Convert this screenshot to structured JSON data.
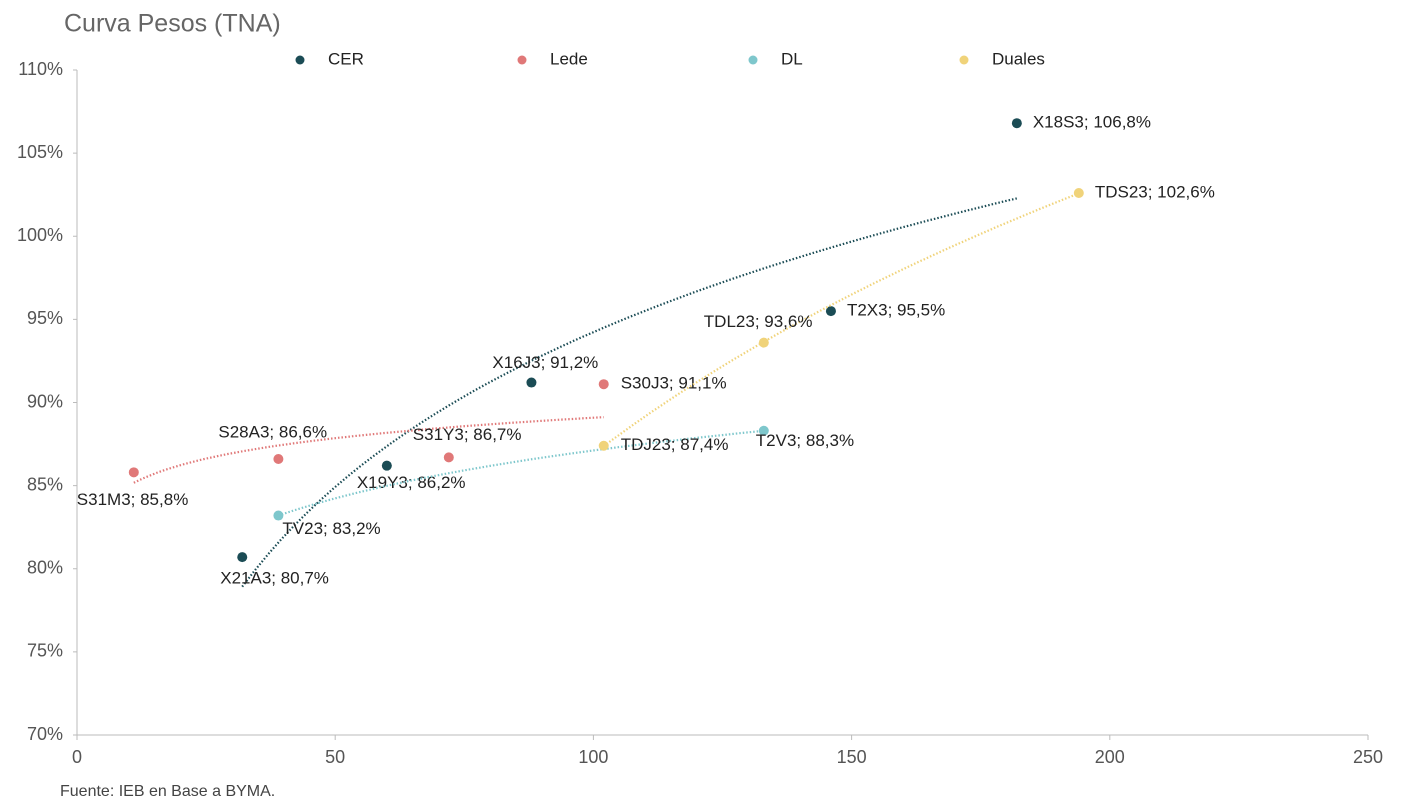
{
  "chart_data": {
    "type": "scatter",
    "title": "Curva Pesos (TNA)",
    "source": "Fuente: IEB en Base a BYMA.",
    "xlim": [
      0,
      250
    ],
    "xticks": [
      0,
      50,
      100,
      150,
      200,
      250
    ],
    "ylim": [
      70,
      110
    ],
    "yticks": [
      {
        "value": 70,
        "label": "70%"
      },
      {
        "value": 75,
        "label": "75%"
      },
      {
        "value": 80,
        "label": "80%"
      },
      {
        "value": 85,
        "label": "85%"
      },
      {
        "value": 90,
        "label": "90%"
      },
      {
        "value": 95,
        "label": "95%"
      },
      {
        "value": 100,
        "label": "100%"
      },
      {
        "value": 105,
        "label": "105%"
      },
      {
        "value": 110,
        "label": "110%"
      }
    ],
    "grid": false,
    "legend": "top",
    "series": [
      {
        "name": "CER",
        "color": "#1b4c55",
        "trendline": "log",
        "x": [
          32,
          60,
          88,
          146,
          182
        ],
        "values": [
          80.7,
          86.2,
          91.2,
          95.5,
          106.8
        ],
        "value_labels": [
          "X21A3; 80,7%",
          "X19Y3; 86,2%",
          "X16J3; 91,2%",
          "T2X3; 95,5%",
          "X18S3; 106,8%"
        ]
      },
      {
        "name": "Lede",
        "color": "#e07878",
        "trendline": "log",
        "x": [
          11,
          39,
          72,
          102
        ],
        "values": [
          85.8,
          86.6,
          86.7,
          91.1
        ],
        "value_labels": [
          "S31M3; 85,8%",
          "S28A3; 86,6%",
          "S31Y3; 86,7%",
          "S30J3; 91,1%"
        ]
      },
      {
        "name": "DL",
        "color": "#7ec7cc",
        "trendline": "log",
        "x": [
          39,
          133
        ],
        "values": [
          83.2,
          88.3
        ],
        "value_labels": [
          "TV23; 83,2%",
          "T2V3; 88,3%"
        ]
      },
      {
        "name": "Duales",
        "color": "#f0d37a",
        "trendline": "log",
        "x": [
          102,
          133,
          194
        ],
        "values": [
          87.4,
          93.6,
          102.6
        ],
        "value_labels": [
          "TDJ23; 87,4%",
          "TDL23; 93,6%",
          "TDS23; 102,6%"
        ]
      }
    ]
  }
}
